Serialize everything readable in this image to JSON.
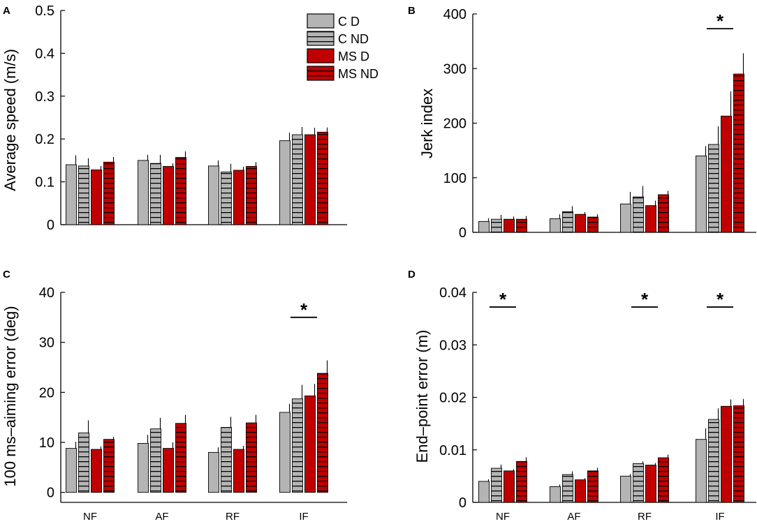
{
  "colors": {
    "control": "#b4b4b4",
    "ms": "#c00000",
    "stripe": "#000000",
    "axis": "#000000"
  },
  "legend": {
    "entries": [
      {
        "label": "C D",
        "group": "control",
        "pattern": "solid"
      },
      {
        "label": "C ND",
        "group": "control",
        "pattern": "striped"
      },
      {
        "label": "MS D",
        "group": "ms",
        "pattern": "solid"
      },
      {
        "label": "MS ND",
        "group": "ms",
        "pattern": "striped"
      }
    ]
  },
  "chart_data": [
    {
      "panel": "A",
      "type": "bar",
      "ylabel": "Average speed (m/s)",
      "ylim": [
        0,
        0.5
      ],
      "yticks": [
        0,
        0.1,
        0.2,
        0.3,
        0.4,
        0.5
      ],
      "ytick_labels": [
        "0",
        "0.1",
        "0.2",
        "0.3",
        "0.4",
        "0.5"
      ],
      "categories": [
        "NF",
        "AF",
        "RF",
        "IF"
      ],
      "show_category_labels": false,
      "series": [
        {
          "name": "C D",
          "values": [
            0.14,
            0.15,
            0.137,
            0.196
          ],
          "errors": [
            0.022,
            0.013,
            0.013,
            0.019
          ]
        },
        {
          "name": "C ND",
          "values": [
            0.137,
            0.143,
            0.123,
            0.21
          ],
          "errors": [
            0.018,
            0.02,
            0.019,
            0.018
          ]
        },
        {
          "name": "MS D",
          "values": [
            0.128,
            0.136,
            0.127,
            0.21
          ],
          "errors": [
            0.009,
            0.007,
            0.008,
            0.016
          ]
        },
        {
          "name": "MS ND",
          "values": [
            0.146,
            0.157,
            0.136,
            0.216
          ],
          "errors": [
            0.012,
            0.014,
            0.01,
            0.011
          ]
        }
      ],
      "significance": []
    },
    {
      "panel": "B",
      "type": "bar",
      "ylabel": "Jerk index",
      "ylim": [
        0,
        400
      ],
      "yticks": [
        0,
        100,
        200,
        300,
        400
      ],
      "ytick_labels": [
        "0",
        "100",
        "200",
        "300",
        "400"
      ],
      "categories": [
        "NF",
        "AF",
        "RF",
        "IF"
      ],
      "show_category_labels": false,
      "series": [
        {
          "name": "C D",
          "values": [
            20,
            25,
            52,
            140
          ],
          "errors": [
            6,
            8,
            22,
            18
          ]
        },
        {
          "name": "C ND",
          "values": [
            24,
            38,
            65,
            161
          ],
          "errors": [
            8,
            10,
            20,
            33
          ]
        },
        {
          "name": "MS D",
          "values": [
            24,
            33,
            49,
            213
          ],
          "errors": [
            5,
            4,
            9,
            45
          ]
        },
        {
          "name": "MS ND",
          "values": [
            24,
            28,
            69,
            290
          ],
          "errors": [
            6,
            5,
            7,
            38
          ]
        }
      ],
      "significance": [
        {
          "category": "IF",
          "label": "*",
          "level": 373
        }
      ]
    },
    {
      "panel": "C",
      "type": "bar",
      "ylabel": "100 ms–aiming error (deg)",
      "ylim": [
        -2,
        40
      ],
      "yticks": [
        0,
        10,
        20,
        30,
        40
      ],
      "ytick_labels": [
        "0",
        "10",
        "20",
        "30",
        "40"
      ],
      "categories": [
        "NF",
        "AF",
        "RF",
        "IF"
      ],
      "show_category_labels": true,
      "series": [
        {
          "name": "C D",
          "values": [
            8.8,
            9.8,
            8.0,
            16.0
          ],
          "errors": [
            1.3,
            1.7,
            1.0,
            1.7
          ]
        },
        {
          "name": "C ND",
          "values": [
            11.9,
            12.7,
            13.0,
            18.7
          ],
          "errors": [
            2.5,
            2.2,
            2.1,
            2.8
          ]
        },
        {
          "name": "MS D",
          "values": [
            8.6,
            8.8,
            8.6,
            19.3
          ],
          "errors": [
            0.6,
            1.2,
            0.7,
            2.4
          ]
        },
        {
          "name": "MS ND",
          "values": [
            10.6,
            13.8,
            13.9,
            23.8
          ],
          "errors": [
            0.5,
            1.7,
            1.6,
            2.6
          ]
        }
      ],
      "significance": [
        {
          "category": "IF",
          "label": "*",
          "level": 35
        }
      ]
    },
    {
      "panel": "D",
      "type": "bar",
      "ylabel": "End–point error (m)",
      "ylim": [
        0,
        0.04
      ],
      "yticks": [
        0,
        0.01,
        0.02,
        0.03,
        0.04
      ],
      "ytick_labels": [
        "0",
        "0.01",
        "0.02",
        "0.03",
        "0.04"
      ],
      "categories": [
        "NF",
        "AF",
        "RF",
        "IF"
      ],
      "show_category_labels": true,
      "series": [
        {
          "name": "C D",
          "values": [
            0.004,
            0.003,
            0.005,
            0.012
          ],
          "errors": [
            0.0004,
            0.0004,
            0.0004,
            0.0021
          ]
        },
        {
          "name": "C ND",
          "values": [
            0.0065,
            0.0053,
            0.0074,
            0.0158
          ],
          "errors": [
            0.0007,
            0.0006,
            0.0004,
            0.0021
          ]
        },
        {
          "name": "MS D",
          "values": [
            0.006,
            0.0043,
            0.0071,
            0.0183
          ],
          "errors": [
            0.0003,
            0.0003,
            0.0004,
            0.0013
          ]
        },
        {
          "name": "MS ND",
          "values": [
            0.0078,
            0.006,
            0.0085,
            0.0184
          ],
          "errors": [
            0.0008,
            0.0006,
            0.0006,
            0.0013
          ]
        }
      ],
      "significance": [
        {
          "category": "NF",
          "label": "*",
          "level": 0.0372
        },
        {
          "category": "RF",
          "label": "*",
          "level": 0.0372
        },
        {
          "category": "IF",
          "label": "*",
          "level": 0.0372
        }
      ]
    }
  ]
}
